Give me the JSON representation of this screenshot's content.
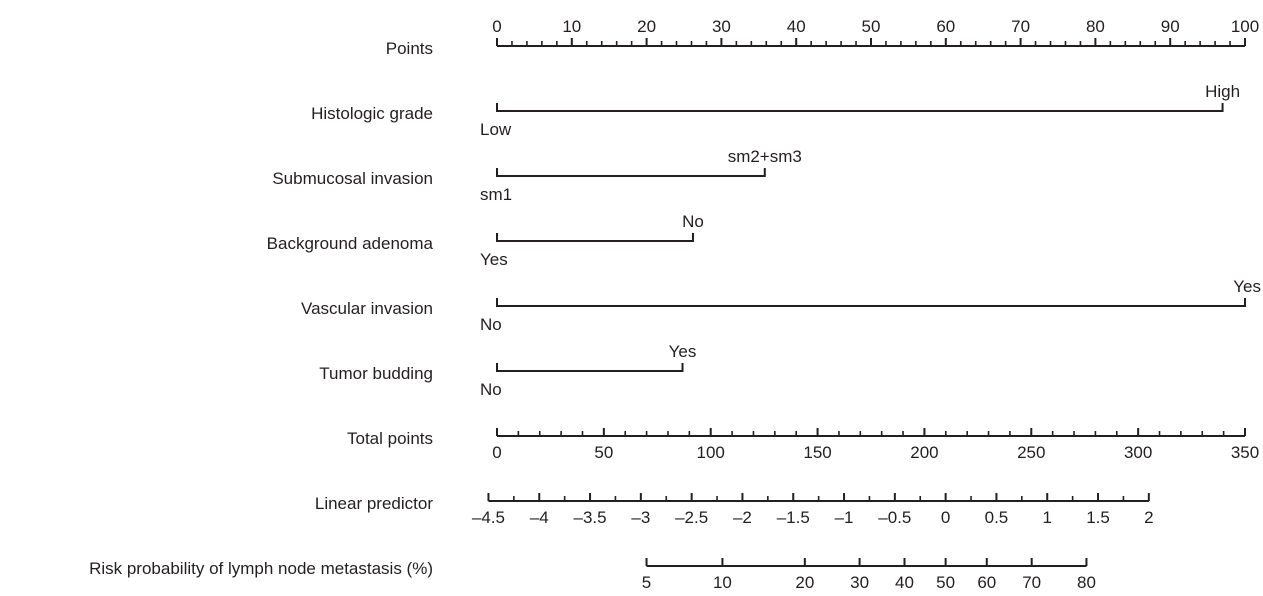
{
  "chart_data": {
    "type": "nomogram",
    "points_scale": {
      "label": "Points",
      "min": 0,
      "max": 100,
      "major_ticks": [
        0,
        10,
        20,
        30,
        40,
        50,
        60,
        70,
        80,
        90,
        100
      ],
      "minor_step": 2
    },
    "variables": [
      {
        "label": "Histologic grade",
        "start_label": "Low",
        "end_label": "High",
        "end_points": 97
      },
      {
        "label": "Submucosal invasion",
        "start_label": "sm1",
        "end_label": "sm2+sm3",
        "end_points": 35.8
      },
      {
        "label": "Background adenoma",
        "start_label": "Yes",
        "end_label": "No",
        "end_points": 26.2
      },
      {
        "label": "Vascular invasion",
        "start_label": "No",
        "end_label": "Yes",
        "end_points": 100
      },
      {
        "label": "Tumor budding",
        "start_label": "No",
        "end_label": "Yes",
        "end_points": 24.8
      }
    ],
    "total_points_scale": {
      "label": "Total points",
      "min": 0,
      "max": 350,
      "major_ticks": [
        0,
        50,
        100,
        150,
        200,
        250,
        300,
        350
      ],
      "minor_step": 10
    },
    "linear_predictor_scale": {
      "label": "Linear predictor",
      "min": -4.5,
      "max": 2,
      "major_ticks": [
        -4.5,
        -4,
        -3.5,
        -3,
        -2.5,
        -2,
        -1.5,
        -1,
        -0.5,
        0,
        0.5,
        1,
        1.5,
        2
      ],
      "tick_labels": [
        "–4.5",
        "–4",
        "–3.5",
        "–3",
        "–2.5",
        "–2",
        "–1.5",
        "–1",
        "–0.5",
        "0",
        "0.5",
        "1",
        "1.5",
        "2"
      ],
      "minor_step": 0.25,
      "total_points_at_min": -4,
      "total_points_at_max": 305
    },
    "risk_scale": {
      "label": "Risk probability of lymph node metastasis (%)",
      "ticks": [
        {
          "value": 5,
          "linear_predictor": -2.944
        },
        {
          "value": 10,
          "linear_predictor": -2.197
        },
        {
          "value": 20,
          "linear_predictor": -1.386
        },
        {
          "value": 30,
          "linear_predictor": -0.847
        },
        {
          "value": 40,
          "linear_predictor": -0.405
        },
        {
          "value": 50,
          "linear_predictor": 0
        },
        {
          "value": 60,
          "linear_predictor": 0.405
        },
        {
          "value": 70,
          "linear_predictor": 0.847
        },
        {
          "value": 80,
          "linear_predictor": 1.386
        }
      ]
    }
  }
}
